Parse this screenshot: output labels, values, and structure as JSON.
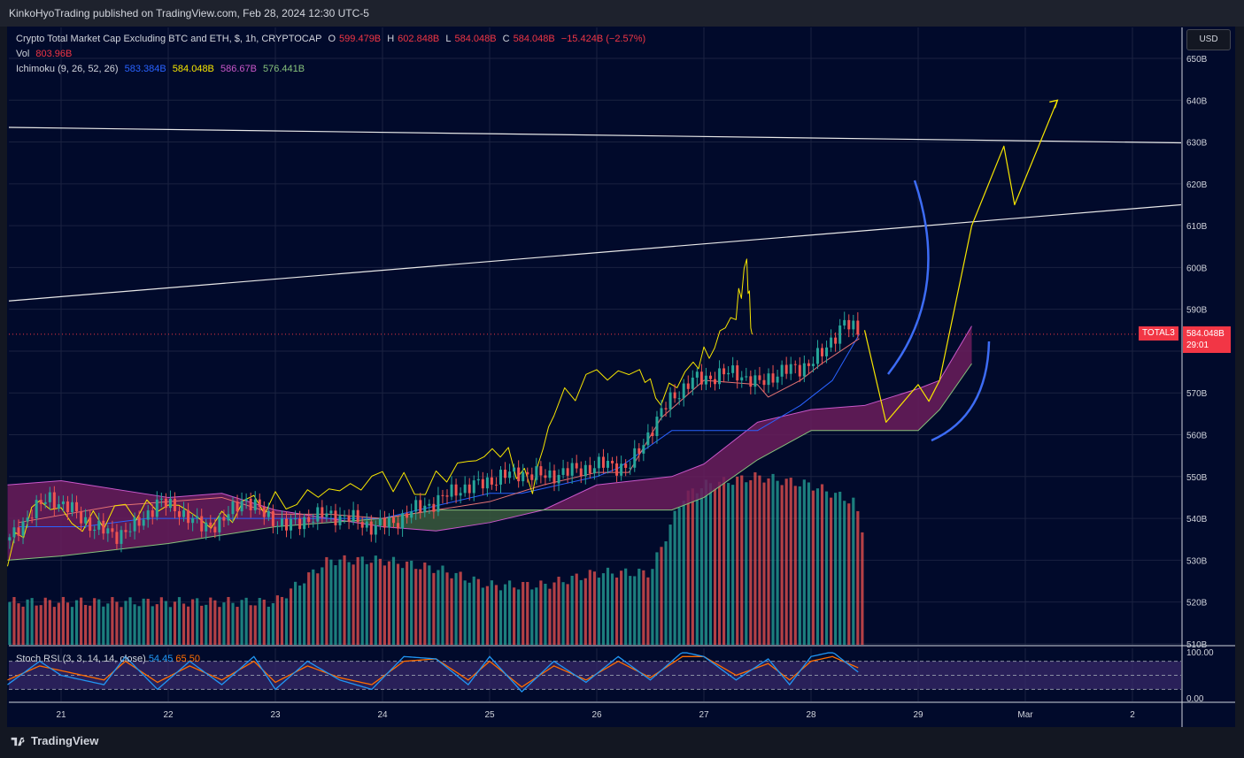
{
  "header": {
    "publisher_line": "KinkoHyoTrading published on TradingView.com, Feb 28, 2024 12:30 UTC-5"
  },
  "legend": {
    "symbol_title": "Crypto Total Market Cap Excluding BTC and ETH, $, 1h, CRYPTOCAP",
    "o_label": "O",
    "o_value": "599.479B",
    "h_label": "H",
    "h_value": "602.848B",
    "l_label": "L",
    "l_value": "584.048B",
    "c_label": "C",
    "c_value": "584.048B",
    "change": "−15.424B (−2.57%)",
    "vol_label": "Vol",
    "vol_value": "803.96B",
    "ichimoku_label": "Ichimoku (9, 26, 52, 26)",
    "ichimoku_values": [
      "583.384B",
      "584.048B",
      "586.67B",
      "576.441B"
    ]
  },
  "price_scale": {
    "currency_button": "USD",
    "ticks": [
      "650B",
      "640B",
      "630B",
      "620B",
      "610B",
      "600B",
      "590B",
      "580B",
      "570B",
      "560B",
      "550B",
      "540B",
      "530B",
      "520B",
      "510B"
    ],
    "last_symbol": "TOTAL3",
    "last_price": "584.048B",
    "countdown": "29:01"
  },
  "rsi": {
    "label": "Stoch RSI (3, 3, 14, 14, close)",
    "k_value": "54.45",
    "d_value": "65.50",
    "ticks": [
      "100.00",
      "0.00"
    ]
  },
  "time_axis": [
    "21",
    "22",
    "23",
    "24",
    "25",
    "26",
    "27",
    "28",
    "29",
    "Mar",
    "2"
  ],
  "footer": {
    "brand": "TradingView"
  },
  "colors": {
    "background": "#010a2b",
    "up": "#26a69a",
    "down": "#ef5350",
    "tenkan": "#2962ff",
    "kijun": "#f7e600",
    "span_a": "#c957c9",
    "span_b": "#86c07b",
    "cloud_bear": "#6b1d5c",
    "cloud_bull": "#3a5a3c",
    "chikou": "#f7e600",
    "trendline": "#e8e8e8",
    "projection": "#f7e600",
    "arc": "#3d6cf5",
    "k_line": "#2196f3",
    "d_line": "#ff6d00"
  },
  "chart_data": {
    "type": "line",
    "title": "Crypto Total Market Cap Excluding BTC and ETH, $, 1h, CRYPTOCAP",
    "xlabel": "",
    "ylabel": "",
    "ylim": [
      510,
      652
    ],
    "x_ticks": [
      "21",
      "22",
      "23",
      "24",
      "25",
      "26",
      "27",
      "28",
      "29",
      "Mar",
      "2"
    ],
    "price_series": {
      "x_day": [
        20.5,
        20.7,
        20.9,
        21.1,
        21.3,
        21.5,
        21.7,
        21.9,
        22.1,
        22.3,
        22.5,
        22.7,
        22.9,
        23.1,
        23.3,
        23.5,
        23.7,
        23.9,
        24.1,
        24.3,
        24.5,
        24.7,
        24.9,
        25.1,
        25.3,
        25.5,
        25.7,
        25.9,
        26.1,
        26.3,
        26.5,
        26.7,
        26.9,
        27.1,
        27.3,
        27.5,
        27.7,
        27.9,
        28.1,
        28.3,
        28.45
      ],
      "close": [
        534,
        541,
        545,
        542,
        538,
        536,
        538,
        544,
        542,
        538,
        539,
        545,
        541,
        538,
        540,
        541,
        540,
        538,
        539,
        542,
        544,
        547,
        548,
        550,
        551,
        550,
        551,
        552,
        553,
        552,
        561,
        569,
        573,
        574,
        575,
        572,
        575,
        576,
        579,
        587,
        584
      ]
    },
    "tenkan": {
      "x_day": [
        20.6,
        21.5,
        22.5,
        23.0,
        23.5,
        24.0,
        24.5,
        25.0,
        25.5,
        26.0,
        26.3,
        26.6,
        27.0,
        27.5,
        27.6,
        27.9,
        28.1,
        28.45
      ],
      "y": [
        539,
        543,
        545,
        541,
        541,
        540,
        542,
        544,
        548,
        551,
        551,
        564,
        573,
        572,
        569,
        573,
        577,
        583
      ]
    },
    "kijun": {
      "x_day": [
        20.6,
        21.2,
        21.8,
        22.6,
        23.4,
        24.0,
        25.0,
        25.3,
        26.0,
        26.2,
        26.7,
        27.0,
        27.5,
        27.9,
        28.2,
        28.45
      ],
      "y": [
        538,
        538,
        540,
        540,
        540,
        540,
        546,
        546,
        550,
        552,
        561,
        561,
        561,
        567,
        573,
        584
      ]
    },
    "span_a": {
      "x_day": [
        20.5,
        21.0,
        22.0,
        22.5,
        23.0,
        24.0,
        24.5,
        25.0,
        25.5,
        26.0,
        26.7,
        27.0,
        27.5,
        28.0,
        28.5,
        29.0,
        29.2,
        29.5
      ],
      "y": [
        548,
        549,
        545,
        546,
        542,
        538,
        537,
        539,
        542,
        548,
        550,
        553,
        563,
        566,
        567,
        571,
        573,
        586
      ]
    },
    "span_b": {
      "x_day": [
        20.5,
        21.0,
        22.0,
        22.5,
        23.0,
        24.0,
        24.5,
        25.0,
        25.5,
        26.0,
        26.7,
        27.0,
        27.5,
        28.0,
        28.5,
        29.0,
        29.2,
        29.5
      ],
      "y": [
        530,
        531,
        534,
        536,
        538,
        540,
        542,
        542,
        542,
        542,
        542,
        545,
        554,
        561,
        561,
        561,
        566,
        577
      ]
    },
    "chikou": {
      "x_day": [
        20.5,
        20.8,
        21.2,
        21.6,
        22.0,
        22.4,
        22.8,
        23.2,
        23.6,
        24.0,
        24.4,
        24.8,
        25.1,
        25.4,
        25.6,
        26.0,
        26.4,
        26.6,
        26.9,
        27.1,
        27.3,
        27.4,
        27.45
      ],
      "y": [
        531,
        544,
        539,
        541,
        544,
        539,
        543,
        545,
        547,
        549,
        548,
        553,
        557,
        547,
        567,
        574,
        575,
        569,
        576,
        582,
        590,
        600,
        584
      ]
    },
    "trendlines": [
      {
        "x_day": [
          20.5,
          31.5
        ],
        "y": [
          633.5,
          629.8
        ]
      },
      {
        "x_day": [
          20.5,
          31.5
        ],
        "y": [
          592.0,
          615.0
        ]
      }
    ],
    "projection": {
      "x_day": [
        28.5,
        28.7,
        29.0,
        29.1,
        29.2,
        29.5,
        29.8,
        29.9,
        30.3
      ],
      "y": [
        585,
        563,
        572,
        568,
        573,
        610,
        629,
        615,
        640
      ]
    },
    "volume": {
      "x_day": [
        20.5,
        21.5,
        22.0,
        22.5,
        23.0,
        23.5,
        24.0,
        24.5,
        25.0,
        25.5,
        26.0,
        26.5,
        26.8,
        27.0,
        27.5,
        28.0,
        28.4,
        28.5
      ],
      "y": [
        520,
        520,
        520,
        520,
        520,
        530,
        530,
        528,
        524,
        524,
        527,
        527,
        545,
        548,
        550,
        548,
        544,
        536
      ]
    },
    "stoch_rsi": {
      "x_day": [
        20.5,
        20.8,
        21.0,
        21.4,
        21.6,
        21.9,
        22.2,
        22.5,
        22.8,
        23.0,
        23.3,
        23.6,
        23.9,
        24.2,
        24.5,
        24.8,
        25.0,
        25.3,
        25.6,
        25.9,
        26.2,
        26.5,
        26.8,
        27.0,
        27.3,
        27.6,
        27.8,
        28.0,
        28.2,
        28.45
      ],
      "k": [
        30,
        80,
        50,
        30,
        90,
        20,
        80,
        30,
        90,
        20,
        80,
        40,
        20,
        90,
        85,
        30,
        90,
        15,
        80,
        35,
        90,
        40,
        100,
        90,
        40,
        85,
        30,
        90,
        100,
        55
      ],
      "d": [
        40,
        70,
        60,
        40,
        80,
        35,
        70,
        40,
        80,
        35,
        70,
        45,
        30,
        80,
        85,
        40,
        80,
        25,
        70,
        40,
        80,
        45,
        90,
        90,
        50,
        75,
        40,
        80,
        90,
        65
      ]
    }
  }
}
